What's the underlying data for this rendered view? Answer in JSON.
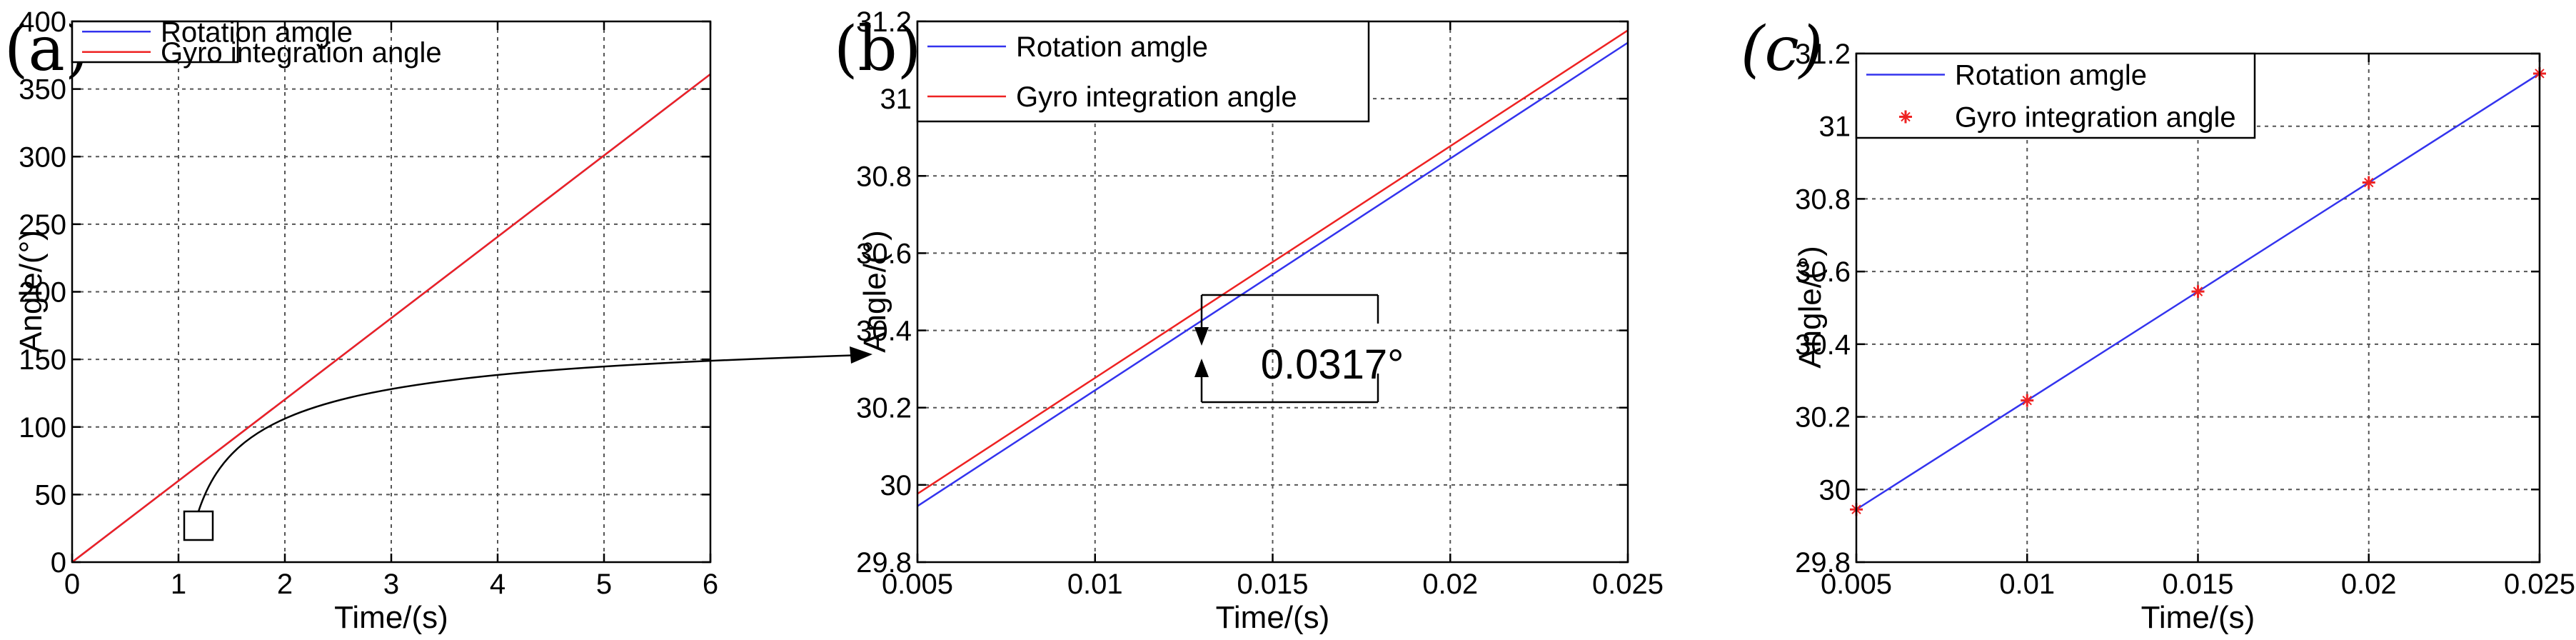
{
  "colors": {
    "rotation": "#3333ee",
    "gyro": "#ee2222",
    "axis": "#000000",
    "grid": "#555555"
  },
  "chart_data": [
    {
      "panel": "(a)",
      "type": "line",
      "xlabel": "Time/(s)",
      "ylabel": "Angle/(°)",
      "xlim": [
        0,
        6
      ],
      "ylim": [
        0,
        400
      ],
      "xticks": [
        "0",
        "1",
        "2",
        "3",
        "4",
        "5",
        "6"
      ],
      "yticks": [
        "0",
        "50",
        "100",
        "150",
        "200",
        "250",
        "300",
        "350",
        "400"
      ],
      "legend": "top-left",
      "series": [
        {
          "name": "Rotation amgle",
          "style": "line",
          "x": [
            0,
            6
          ],
          "y": [
            0,
            361
          ]
        },
        {
          "name": "Gyro integration angle",
          "style": "line",
          "x": [
            0,
            6
          ],
          "y": [
            0,
            361
          ]
        }
      ]
    },
    {
      "panel": "(b)",
      "type": "line",
      "xlabel": "Time/(s)",
      "ylabel": "Angle/(°)",
      "xlim": [
        0.005,
        0.025
      ],
      "ylim": [
        29.8,
        31.2
      ],
      "xticks": [
        "0.005",
        "0.01",
        "0.015",
        "0.02",
        "0.025"
      ],
      "yticks": [
        "29.8",
        "30",
        "30.2",
        "30.4",
        "30.6",
        "30.8",
        "31",
        "31.2"
      ],
      "legend": "top-left",
      "annotation": "0.0317°",
      "series": [
        {
          "name": "Rotation amgle",
          "style": "line",
          "x": [
            0.005,
            0.025
          ],
          "y": [
            29.945,
            31.145
          ]
        },
        {
          "name": "Gyro integration angle",
          "style": "line",
          "x": [
            0.005,
            0.025
          ],
          "y": [
            29.977,
            31.177
          ]
        }
      ]
    },
    {
      "panel": "(c)",
      "type": "line",
      "xlabel": "Time/(s)",
      "ylabel": "Angle/(°)",
      "xlim": [
        0.005,
        0.025
      ],
      "ylim": [
        29.8,
        31.2
      ],
      "xticks": [
        "0.005",
        "0.01",
        "0.015",
        "0.02",
        "0.025"
      ],
      "yticks": [
        "29.8",
        "30",
        "30.2",
        "30.4",
        "30.6",
        "30.8",
        "31",
        "31.2"
      ],
      "legend": "top-left",
      "series": [
        {
          "name": "Rotation amgle",
          "style": "line",
          "x": [
            0.005,
            0.025
          ],
          "y": [
            29.945,
            31.145
          ]
        },
        {
          "name": "Gyro integration angle",
          "style": "marker",
          "x": [
            0.005,
            0.01,
            0.015,
            0.02,
            0.025
          ],
          "y": [
            29.945,
            30.245,
            30.545,
            30.845,
            31.145
          ]
        }
      ]
    }
  ]
}
